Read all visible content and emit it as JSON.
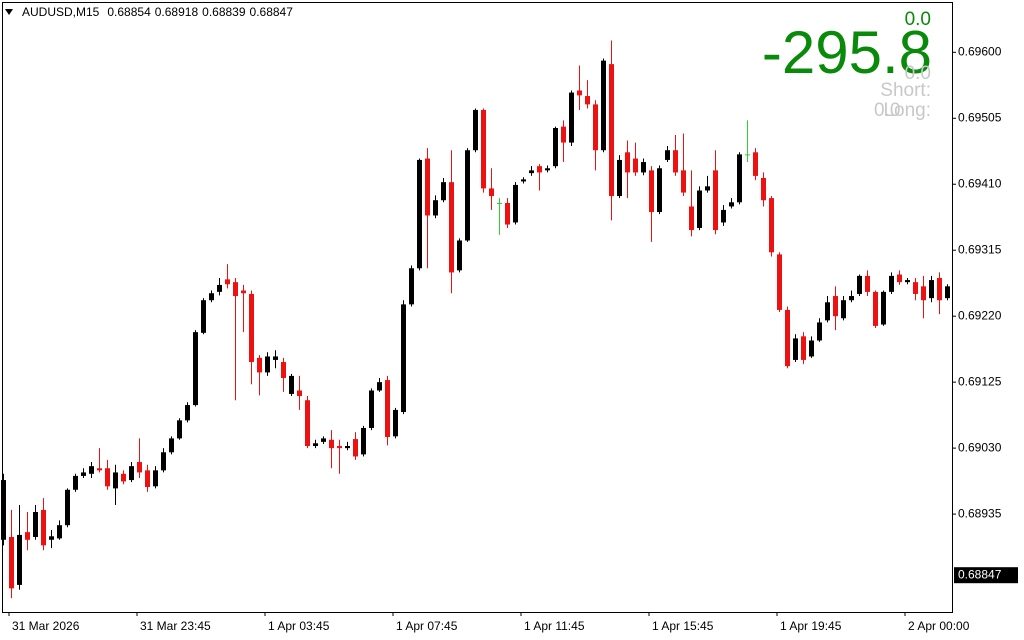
{
  "header": {
    "symbol": "AUDUSD,M15",
    "ohlc": [
      0.68854,
      0.68918,
      0.68839,
      0.68847
    ]
  },
  "indicator": {
    "value": "0.0",
    "profit": "-295.8",
    "short_value": "0.0",
    "short_label": "Short:",
    "long_value": "0.0",
    "long_label": "Long:"
  },
  "chart_data": {
    "type": "candlestick",
    "categories": [
      "31 Mar 2026",
      null,
      null,
      null,
      null,
      null,
      null,
      null,
      null,
      null,
      null,
      null,
      null,
      null,
      null,
      null,
      "31 Mar 23:45",
      null,
      null,
      null,
      null,
      null,
      null,
      null,
      null,
      null,
      null,
      null,
      null,
      null,
      null,
      null,
      "1 Apr 03:45",
      null,
      null,
      null,
      null,
      null,
      null,
      null,
      null,
      null,
      null,
      null,
      null,
      null,
      null,
      null,
      "1 Apr 07:45",
      null,
      null,
      null,
      null,
      null,
      null,
      null,
      null,
      null,
      null,
      null,
      null,
      null,
      null,
      null,
      "1 Apr 11:45",
      null,
      null,
      null,
      null,
      null,
      null,
      null,
      null,
      null,
      null,
      null,
      null,
      null,
      null,
      null,
      "1 Apr 15:45",
      null,
      null,
      null,
      null,
      null,
      null,
      null,
      null,
      null,
      null,
      null,
      null,
      null,
      null,
      null,
      "1 Apr 19:45",
      null,
      null,
      null,
      null,
      null,
      null,
      null,
      null,
      null,
      null,
      null,
      null,
      null,
      null,
      null,
      "2 Apr 00:00",
      null,
      null,
      null,
      null,
      null,
      null
    ],
    "open": [
      0.68898,
      0.68902,
      0.68833,
      0.68909,
      0.68902,
      0.68941,
      0.68898,
      0.689,
      0.68919,
      0.6897,
      0.6899,
      0.68993,
      0.69001,
      0.69001,
      0.68972,
      0.68993,
      0.68984,
      0.6901,
      0.68998,
      0.68975,
      0.68998,
      0.69024,
      0.69044,
      0.6907,
      0.69092,
      0.69196,
      0.69243,
      0.69255,
      0.69273,
      0.69269,
      0.69257,
      0.69252,
      0.6916,
      0.69139,
      0.69157,
      0.69154,
      0.69108,
      0.69113,
      0.69099,
      0.69033,
      0.69039,
      0.69042,
      0.69033,
      0.6903,
      0.69043,
      0.69021,
      0.69059,
      0.69113,
      0.69128,
      0.69047,
      0.69082,
      0.69237,
      0.69289,
      0.69447,
      0.69365,
      0.69387,
      0.69413,
      0.69286,
      0.69329,
      0.69459,
      0.69517,
      0.69404,
      0.69383,
      0.69383,
      0.69355,
      0.69414,
      0.69426,
      0.69436,
      0.6943,
      0.69436,
      0.69493,
      0.6947,
      0.69545,
      0.69537,
      0.69525,
      0.69459,
      0.69583,
      0.69393,
      0.69456,
      0.69447,
      0.69427,
      0.6943,
      0.6937,
      0.69445,
      0.69459,
      0.6943,
      0.69378,
      0.69347,
      0.69401,
      0.6943,
      0.69355,
      0.69378,
      0.69384,
      0.69453,
      0.69456,
      0.69419,
      0.6939,
      0.69309,
      0.69229,
      0.69157,
      0.69191,
      0.69162,
      0.69185,
      0.69214,
      0.69249,
      0.69217,
      0.69243,
      0.69252,
      0.69278,
      0.69255,
      0.69208,
      0.69255,
      0.6928,
      0.69269,
      0.69269,
      0.69263,
      0.69246,
      0.69275,
      0.69246
    ],
    "high": [
      0.68993,
      0.68941,
      0.68948,
      0.68938,
      0.68948,
      0.68958,
      0.68912,
      0.68926,
      0.68972,
      0.68993,
      0.69001,
      0.6901,
      0.6903,
      0.69013,
      0.69006,
      0.68998,
      0.6901,
      0.69044,
      0.69006,
      0.69004,
      0.6903,
      0.69047,
      0.69073,
      0.69096,
      0.692,
      0.69246,
      0.69257,
      0.69275,
      0.69295,
      0.69275,
      0.69265,
      0.69257,
      0.69164,
      0.69168,
      0.69171,
      0.6916,
      0.69137,
      0.69134,
      0.69105,
      0.69042,
      0.69047,
      0.69056,
      0.69042,
      0.69039,
      0.69053,
      0.69062,
      0.69116,
      0.69131,
      0.69134,
      0.69088,
      0.69243,
      0.69293,
      0.69447,
      0.69462,
      0.69394,
      0.69419,
      0.69459,
      0.69332,
      0.69462,
      0.69519,
      0.69519,
      0.69433,
      0.6939,
      0.6939,
      0.69413,
      0.6942,
      0.69436,
      0.69439,
      0.69437,
      0.69493,
      0.69502,
      0.69545,
      0.69581,
      0.6956,
      0.69531,
      0.69591,
      0.69617,
      0.69452,
      0.69473,
      0.6947,
      0.69447,
      0.69436,
      0.69437,
      0.69465,
      0.69481,
      0.69483,
      0.6943,
      0.69407,
      0.69422,
      0.69459,
      0.6938,
      0.6939,
      0.69456,
      0.69502,
      0.69462,
      0.69427,
      0.69393,
      0.69312,
      0.69234,
      0.69194,
      0.69197,
      0.69191,
      0.69217,
      0.69249,
      0.69263,
      0.69249,
      0.69257,
      0.6928,
      0.69286,
      0.69257,
      0.69257,
      0.69283,
      0.69286,
      0.69275,
      0.69275,
      0.69278,
      0.69278,
      0.69283,
      0.69266
    ],
    "low": [
      0.6889,
      0.68814,
      0.68826,
      0.68883,
      0.68898,
      0.68883,
      0.68886,
      0.68898,
      0.68916,
      0.68967,
      0.68987,
      0.68987,
      0.68995,
      0.6897,
      0.68948,
      0.68978,
      0.68981,
      0.68987,
      0.68967,
      0.68972,
      0.68995,
      0.69021,
      0.69042,
      0.69067,
      0.6909,
      0.69194,
      0.6924,
      0.6925,
      0.6926,
      0.69099,
      0.69197,
      0.69122,
      0.69106,
      0.69134,
      0.69145,
      0.69111,
      0.69105,
      0.69085,
      0.6903,
      0.6903,
      0.69036,
      0.69001,
      0.68993,
      0.69027,
      0.69013,
      0.69018,
      0.69056,
      0.69111,
      0.69034,
      0.69044,
      0.69079,
      0.69234,
      0.69286,
      0.69289,
      0.69361,
      0.69384,
      0.69253,
      0.69283,
      0.69327,
      0.69456,
      0.69398,
      0.69373,
      0.69337,
      0.69347,
      0.69352,
      0.69411,
      0.69422,
      0.69401,
      0.69427,
      0.69433,
      0.69442,
      0.69465,
      0.69517,
      0.69519,
      0.6943,
      0.69456,
      0.69358,
      0.6939,
      0.6939,
      0.69422,
      0.69423,
      0.69327,
      0.69367,
      0.69442,
      0.69422,
      0.69393,
      0.69335,
      0.69344,
      0.69398,
      0.69338,
      0.6935,
      0.69375,
      0.69381,
      0.69442,
      0.69416,
      0.69378,
      0.69306,
      0.69226,
      0.69145,
      0.69154,
      0.69151,
      0.6916,
      0.69183,
      0.69211,
      0.692,
      0.69214,
      0.6924,
      0.69249,
      0.69249,
      0.69203,
      0.69206,
      0.69252,
      0.69265,
      0.69266,
      0.69243,
      0.69217,
      0.6924,
      0.69223,
      0.69243
    ],
    "close": [
      0.68984,
      0.68828,
      0.68905,
      0.68898,
      0.68938,
      0.6889,
      0.68903,
      0.68919,
      0.6897,
      0.6899,
      0.68995,
      0.69004,
      0.68998,
      0.68975,
      0.68995,
      0.68982,
      0.69004,
      0.68995,
      0.68974,
      0.68998,
      0.69024,
      0.69044,
      0.6907,
      0.69092,
      0.69197,
      0.69243,
      0.69253,
      0.69265,
      0.69266,
      0.69249,
      0.69253,
      0.69154,
      0.69139,
      0.69162,
      0.69162,
      0.69131,
      0.69134,
      0.69105,
      0.69033,
      0.69037,
      0.69044,
      0.6903,
      0.6903,
      0.69033,
      0.69018,
      0.69059,
      0.69113,
      0.69125,
      0.69046,
      0.69085,
      0.69237,
      0.69289,
      0.69445,
      0.69365,
      0.69387,
      0.69413,
      0.69283,
      0.69329,
      0.69459,
      0.69517,
      0.69404,
      0.69393,
      0.69383,
      0.69352,
      0.69409,
      0.69417,
      0.6943,
      0.69427,
      0.69433,
      0.69491,
      0.6947,
      0.69542,
      0.69538,
      0.69525,
      0.69459,
      0.69588,
      0.69393,
      0.69445,
      0.69427,
      0.69427,
      0.69442,
      0.6937,
      0.69433,
      0.69459,
      0.69427,
      0.69398,
      0.69344,
      0.69401,
      0.69407,
      0.69344,
      0.69373,
      0.69384,
      0.69453,
      0.69453,
      0.69422,
      0.69387,
      0.69312,
      0.69229,
      0.69148,
      0.69188,
      0.69157,
      0.69185,
      0.69211,
      0.6924,
      0.6922,
      0.69243,
      0.69249,
      0.69278,
      0.69255,
      0.69206,
      0.69255,
      0.69278,
      0.69269,
      0.69272,
      0.69252,
      0.69243,
      0.69272,
      0.69243,
      0.69263
    ],
    "up_color": "#000000",
    "down_color": "#ee1111",
    "doji_color": "#33cc33",
    "ylim": [
      0.68794,
      0.69671
    ],
    "yticks": [
      {
        "value": 0.696,
        "label": "0.69600"
      },
      {
        "value": 0.69505,
        "label": "0.69505"
      },
      {
        "value": 0.6941,
        "label": "0.69410"
      },
      {
        "value": 0.69315,
        "label": "0.69315"
      },
      {
        "value": 0.6922,
        "label": "0.69220"
      },
      {
        "value": 0.69125,
        "label": "0.69125"
      },
      {
        "value": 0.6903,
        "label": "0.69030"
      },
      {
        "value": 0.68935,
        "label": "0.68935"
      }
    ],
    "current_price": 0.68847
  }
}
